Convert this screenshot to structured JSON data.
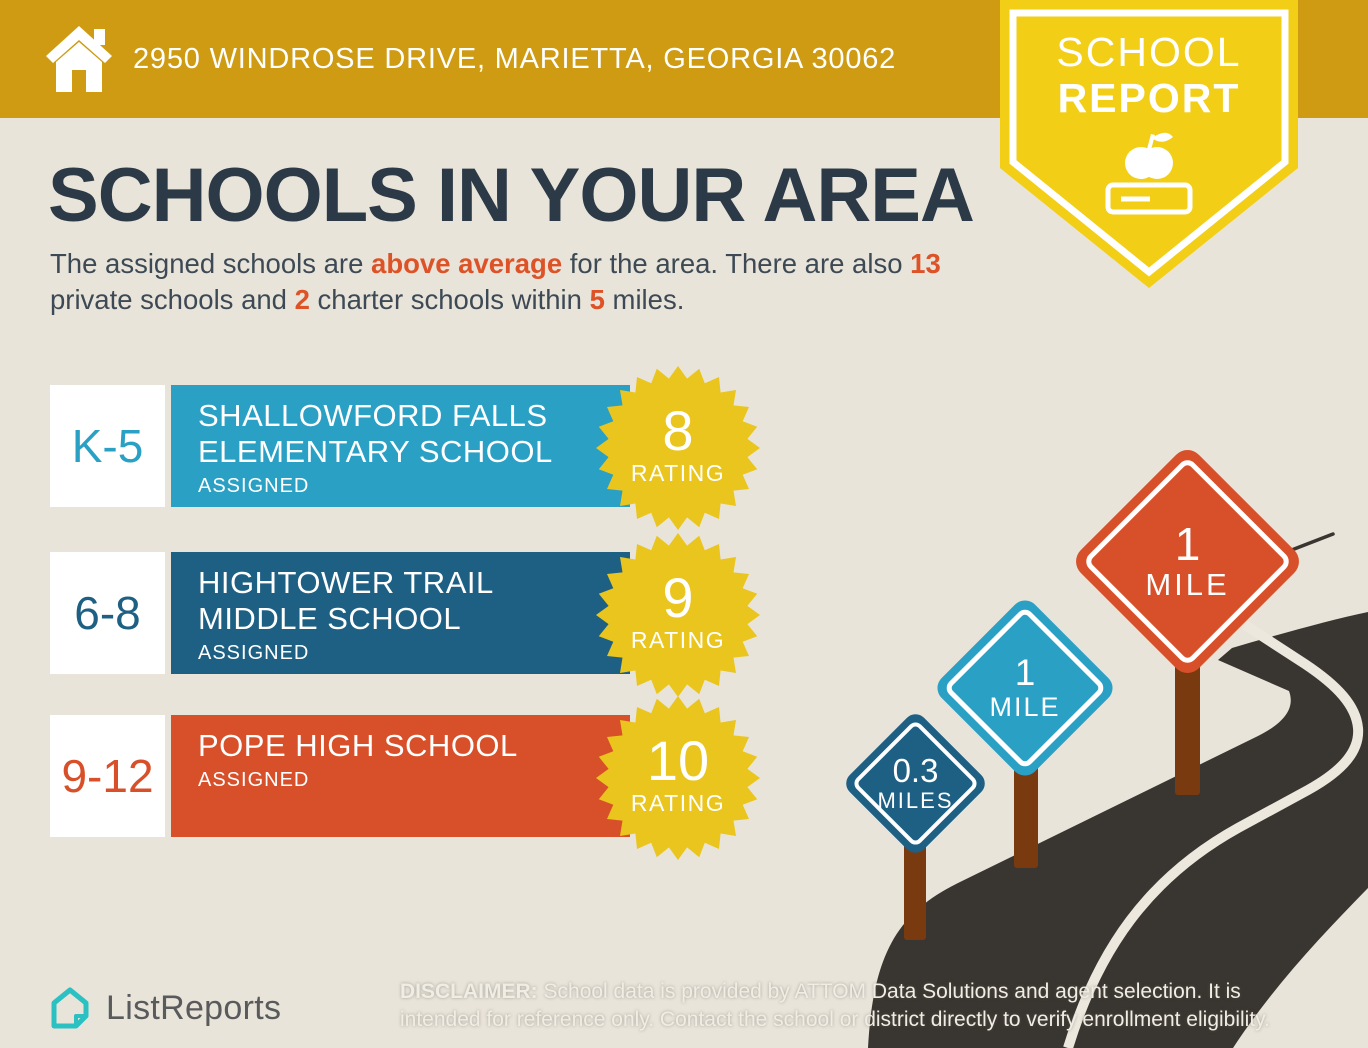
{
  "header": {
    "address": "2950 WINDROSE DRIVE, MARIETTA, GEORGIA 30062",
    "badge": {
      "line1": "SCHOOL",
      "line2": "REPORT",
      "icon": "apple-on-book-icon"
    }
  },
  "main": {
    "title": "SCHOOLS IN YOUR AREA",
    "intro": {
      "segments": [
        {
          "text": "The assigned schools are ",
          "highlight": false
        },
        {
          "text": "above average",
          "highlight": true
        },
        {
          "text": " for the area. There are also ",
          "highlight": false
        },
        {
          "text": "13",
          "highlight": true
        },
        {
          "text": " private schools and ",
          "highlight": false
        },
        {
          "text": "2",
          "highlight": true
        },
        {
          "text": " charter schools within ",
          "highlight": false
        },
        {
          "text": "5",
          "highlight": true
        },
        {
          "text": " miles.",
          "highlight": false
        }
      ]
    },
    "schools": [
      {
        "grades": "K-5",
        "name": "SHALLOWFORD FALLS ELEMENTARY SCHOOL",
        "name_lines": [
          "SHALLOWFORD FALLS",
          "ELEMENTARY SCHOOL"
        ],
        "status": "ASSIGNED",
        "rating": "8",
        "rating_label": "RATING",
        "color": "#2AA0C4"
      },
      {
        "grades": "6-8",
        "name": "HIGHTOWER TRAIL MIDDLE SCHOOL",
        "name_lines": [
          "HIGHTOWER TRAIL",
          "MIDDLE SCHOOL"
        ],
        "status": "ASSIGNED",
        "rating": "9",
        "rating_label": "RATING",
        "color": "#1E6083"
      },
      {
        "grades": "9-12",
        "name": "POPE HIGH SCHOOL",
        "name_lines": [
          "POPE HIGH SCHOOL"
        ],
        "status": "ASSIGNED",
        "rating": "10",
        "rating_label": "RATING",
        "color": "#D8502A"
      }
    ]
  },
  "roadside": {
    "signs": [
      {
        "distance": "0.3",
        "unit": "MILES",
        "color": "#1E6083"
      },
      {
        "distance": "1",
        "unit": "MILE",
        "color": "#2AA0C4"
      },
      {
        "distance": "1",
        "unit": "MILE",
        "color": "#D8502A"
      }
    ]
  },
  "footer": {
    "logo_text": "ListReports",
    "disclaimer_label": "DISCLAIMER:",
    "disclaimer_rest": " School data is provided by ATTOM Data Solutions and agent selection. It is intended for reference only. Contact the school or district directly to verify enrollment eligibility."
  },
  "colors": {
    "top_bar_gold": "#CE9B13",
    "badge_yellow": "#F2CE17",
    "starburst_yellow": "#EAC51D",
    "background_beige": "#E9E4DA",
    "title_navy": "#2C3A47",
    "accent_orange": "#DD5226",
    "teal": "#2AA0C4",
    "dark_blue": "#1E6083",
    "red": "#D8502A",
    "road_charcoal": "#393530",
    "road_line_cream": "#ECE8DE",
    "post_brown": "#7A3A0F",
    "logo_teal": "#2BC0C2"
  }
}
